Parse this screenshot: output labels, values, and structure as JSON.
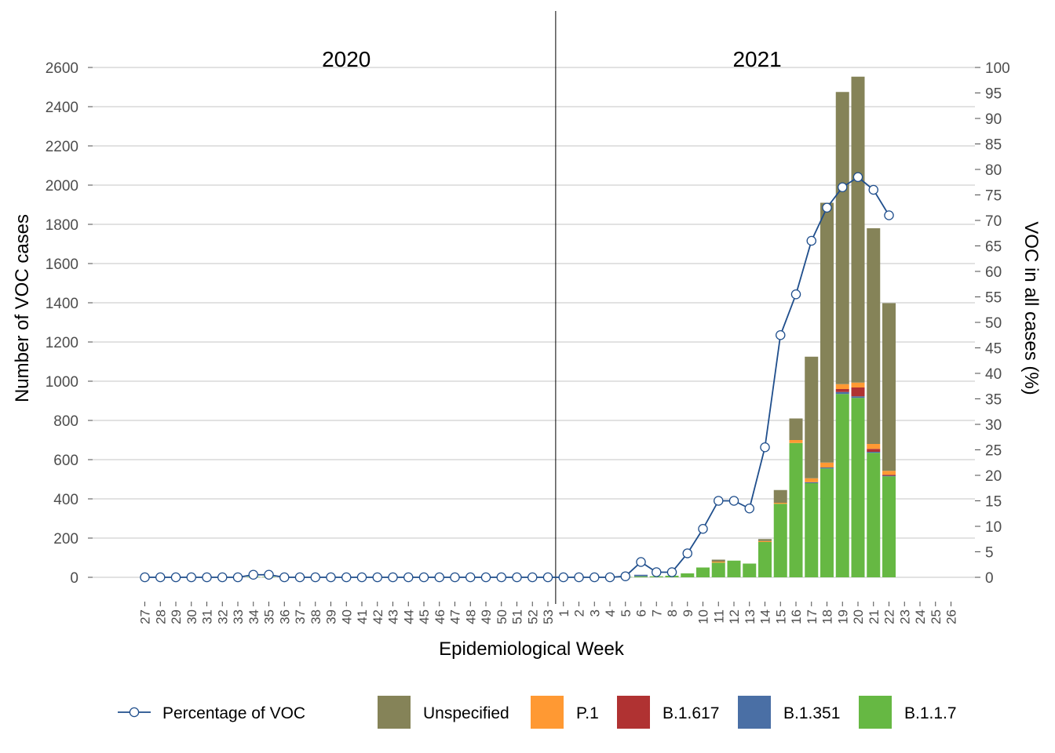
{
  "chart_data": {
    "type": "bar",
    "stacked": true,
    "categories": [
      "27",
      "28",
      "29",
      "30",
      "31",
      "32",
      "33",
      "34",
      "35",
      "36",
      "37",
      "38",
      "39",
      "40",
      "41",
      "42",
      "43",
      "44",
      "45",
      "46",
      "47",
      "48",
      "49",
      "50",
      "51",
      "52",
      "53",
      "1",
      "2",
      "3",
      "4",
      "5",
      "6",
      "7",
      "8",
      "9",
      "10",
      "11",
      "12",
      "13",
      "14",
      "15",
      "16",
      "17",
      "18",
      "19",
      "20",
      "21",
      "22",
      "23",
      "24",
      "25",
      "26"
    ],
    "year_groups": [
      {
        "label": "2020",
        "first": "27",
        "last": "53"
      },
      {
        "label": "2021",
        "first": "1",
        "last": "26"
      }
    ],
    "year_separator_after": "53",
    "xlabel": "Epidemiological Week",
    "ylabel": "Number of VOC cases",
    "y2label": "VOC in all cases (%)",
    "ylim": [
      0,
      2600
    ],
    "yticks": [
      0,
      200,
      400,
      600,
      800,
      1000,
      1200,
      1400,
      1600,
      1800,
      2000,
      2200,
      2400,
      2600
    ],
    "y2lim": [
      0,
      100
    ],
    "y2ticks": [
      0,
      5,
      10,
      15,
      20,
      25,
      30,
      35,
      40,
      45,
      50,
      55,
      60,
      65,
      70,
      75,
      80,
      85,
      90,
      95,
      100
    ],
    "series": [
      {
        "name": "B.1.1.7",
        "color": "#66b843",
        "values": [
          0,
          0,
          0,
          0,
          0,
          0,
          0,
          2,
          2,
          0,
          0,
          0,
          0,
          0,
          0,
          0,
          0,
          0,
          0,
          0,
          0,
          0,
          0,
          0,
          0,
          0,
          0,
          0,
          0,
          0,
          0,
          2,
          5,
          5,
          8,
          20,
          50,
          75,
          85,
          70,
          180,
          375,
          685,
          480,
          555,
          935,
          915,
          635,
          515,
          0,
          0,
          0,
          0
        ]
      },
      {
        "name": "B.1.351",
        "color": "#4a6fa5",
        "values": [
          0,
          0,
          0,
          0,
          0,
          0,
          0,
          0,
          0,
          0,
          0,
          0,
          0,
          0,
          0,
          0,
          0,
          0,
          0,
          0,
          0,
          0,
          0,
          0,
          0,
          0,
          0,
          0,
          0,
          0,
          0,
          0,
          8,
          0,
          0,
          0,
          0,
          0,
          0,
          0,
          0,
          0,
          0,
          5,
          5,
          10,
          8,
          5,
          3,
          0,
          0,
          0,
          0
        ]
      },
      {
        "name": "B.1.617",
        "color": "#b03232",
        "values": [
          0,
          0,
          0,
          0,
          0,
          0,
          0,
          0,
          0,
          0,
          0,
          0,
          0,
          0,
          0,
          0,
          0,
          0,
          0,
          0,
          0,
          0,
          0,
          0,
          0,
          0,
          0,
          0,
          0,
          0,
          0,
          0,
          0,
          0,
          0,
          0,
          0,
          0,
          0,
          0,
          0,
          0,
          0,
          0,
          0,
          15,
          45,
          15,
          5,
          0,
          0,
          0,
          0
        ]
      },
      {
        "name": "P.1",
        "color": "#ff9933",
        "values": [
          0,
          0,
          0,
          0,
          0,
          0,
          0,
          0,
          0,
          0,
          0,
          0,
          0,
          0,
          0,
          0,
          0,
          0,
          0,
          0,
          0,
          0,
          0,
          0,
          0,
          0,
          0,
          0,
          0,
          0,
          0,
          0,
          0,
          0,
          0,
          0,
          0,
          5,
          0,
          0,
          5,
          5,
          15,
          20,
          25,
          25,
          25,
          25,
          20,
          0,
          0,
          0,
          0
        ]
      },
      {
        "name": "Unspecified",
        "color": "#858358",
        "values": [
          0,
          0,
          0,
          0,
          0,
          0,
          0,
          0,
          0,
          0,
          0,
          0,
          0,
          0,
          0,
          0,
          0,
          0,
          0,
          0,
          0,
          0,
          0,
          0,
          0,
          0,
          0,
          0,
          0,
          0,
          0,
          0,
          0,
          0,
          0,
          0,
          0,
          10,
          0,
          0,
          10,
          65,
          110,
          620,
          1325,
          1490,
          1560,
          1100,
          855,
          0,
          0,
          0,
          0
        ]
      }
    ],
    "line": {
      "name": "Percentage of VOC",
      "color": "#1f4e8c",
      "values": [
        0,
        0,
        0,
        0,
        0,
        0,
        0,
        0.5,
        0.5,
        0,
        0,
        0,
        0,
        0,
        0,
        0,
        0,
        0,
        0,
        0,
        0,
        0,
        0,
        0,
        0,
        0,
        0,
        0,
        0,
        0,
        0,
        0.2,
        3,
        1,
        1,
        4.7,
        9.5,
        15,
        15,
        13.5,
        25.5,
        47.5,
        55.5,
        66,
        72.5,
        76.5,
        78.5,
        76,
        71,
        null,
        null,
        null,
        null
      ]
    },
    "legend_order": [
      "Percentage of VOC",
      "Unspecified",
      "P.1",
      "B.1.617",
      "B.1.351",
      "B.1.1.7"
    ],
    "legend_position": "bottom",
    "grid": true
  }
}
